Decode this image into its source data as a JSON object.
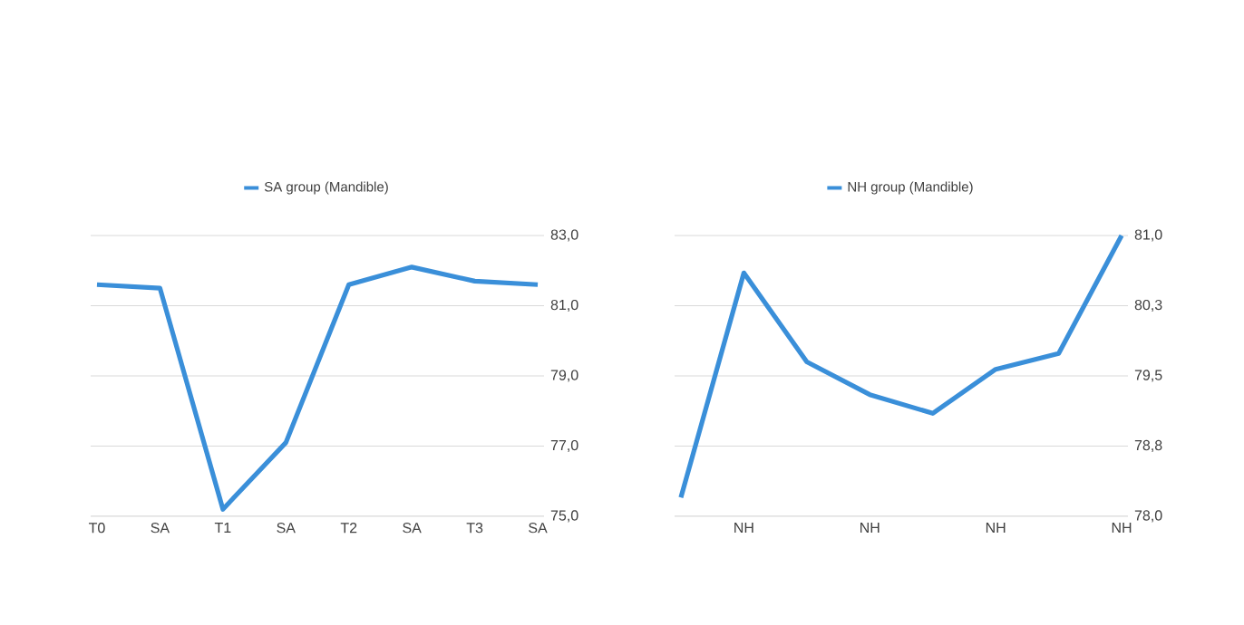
{
  "chart_data": [
    {
      "type": "line",
      "categories": [
        "T0",
        "SA",
        "T1",
        "SA",
        "T2",
        "SA",
        "T3",
        "SA"
      ],
      "series": [
        {
          "name": "SA group (Mandible)",
          "color": "#3a8fd9",
          "values": [
            81.6,
            81.5,
            75.2,
            77.1,
            81.6,
            82.1,
            81.7,
            81.6
          ]
        }
      ],
      "ylim": [
        75,
        83
      ],
      "yticks": [
        {
          "value": 75,
          "label": "75,0"
        },
        {
          "value": 77,
          "label": "77,0"
        },
        {
          "value": 79,
          "label": "79,0"
        },
        {
          "value": 81,
          "label": "81,0"
        },
        {
          "value": 83,
          "label": "83,0"
        }
      ],
      "grid": "y",
      "legend": "top"
    },
    {
      "type": "line",
      "categories": [
        null,
        "NH",
        null,
        "NH",
        null,
        "NH",
        null,
        "NH"
      ],
      "series": [
        {
          "name": "NH group (Mandible)",
          "color": "#3a8fd9",
          "values": [
            78.2,
            80.6,
            79.65,
            79.3,
            79.1,
            79.57,
            79.74,
            81.0
          ]
        }
      ],
      "ylim": [
        78,
        81
      ],
      "yticks": [
        {
          "value": 78,
          "label": "78,0"
        },
        {
          "value": 78.75,
          "label": "78,8"
        },
        {
          "value": 79.5,
          "label": "79,5"
        },
        {
          "value": 80.25,
          "label": "80,3"
        },
        {
          "value": 81,
          "label": "81,0"
        }
      ],
      "grid": "y",
      "legend": "top"
    }
  ]
}
